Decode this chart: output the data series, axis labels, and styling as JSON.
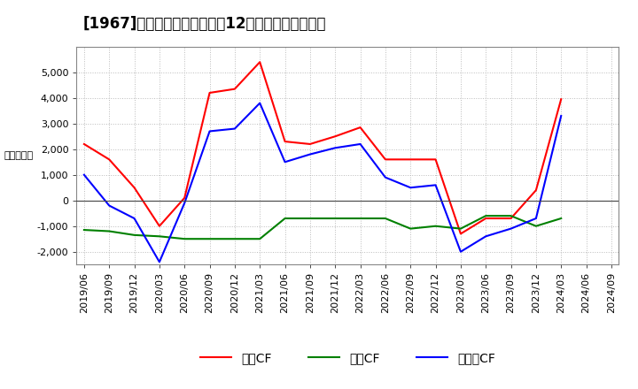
{
  "title": "[1967]　キャッシュフローの12か月移動合計の推移",
  "ylabel": "（百万円）",
  "background_color": "#ffffff",
  "plot_bg_color": "#ffffff",
  "grid_color": "#bbbbbb",
  "x_labels": [
    "2019/06",
    "2019/09",
    "2019/12",
    "2020/03",
    "2020/06",
    "2020/09",
    "2020/12",
    "2021/03",
    "2021/06",
    "2021/09",
    "2021/12",
    "2022/03",
    "2022/06",
    "2022/09",
    "2022/12",
    "2023/03",
    "2023/06",
    "2023/09",
    "2023/12",
    "2024/03",
    "2024/06",
    "2024/09"
  ],
  "operating_cf": [
    2200,
    1600,
    500,
    -1000,
    100,
    4200,
    4350,
    5400,
    2300,
    2200,
    2500,
    2850,
    1600,
    1600,
    1600,
    -1300,
    -700,
    -700,
    400,
    3950,
    null,
    null
  ],
  "investing_cf": [
    -1150,
    -1200,
    -1350,
    -1400,
    -1500,
    -1500,
    -1500,
    -1500,
    -700,
    -700,
    -700,
    -700,
    -700,
    -1100,
    -1000,
    -1100,
    -600,
    -600,
    -1000,
    -700,
    null,
    null
  ],
  "free_cf": [
    1000,
    -200,
    -700,
    -2400,
    -100,
    2700,
    2800,
    3800,
    1500,
    1800,
    2050,
    2200,
    900,
    500,
    600,
    -2000,
    -1400,
    -1100,
    -700,
    3300,
    null,
    null
  ],
  "color_operating": "#ff0000",
  "color_investing": "#008000",
  "color_free": "#0000ff",
  "legend_operating": "営業CF",
  "legend_investing": "投資CF",
  "legend_free": "フリーCF",
  "ylim": [
    -2500,
    6000
  ],
  "yticks": [
    -2000,
    -1000,
    0,
    1000,
    2000,
    3000,
    4000,
    5000
  ],
  "title_fontsize": 12,
  "axis_fontsize": 8,
  "legend_fontsize": 10
}
